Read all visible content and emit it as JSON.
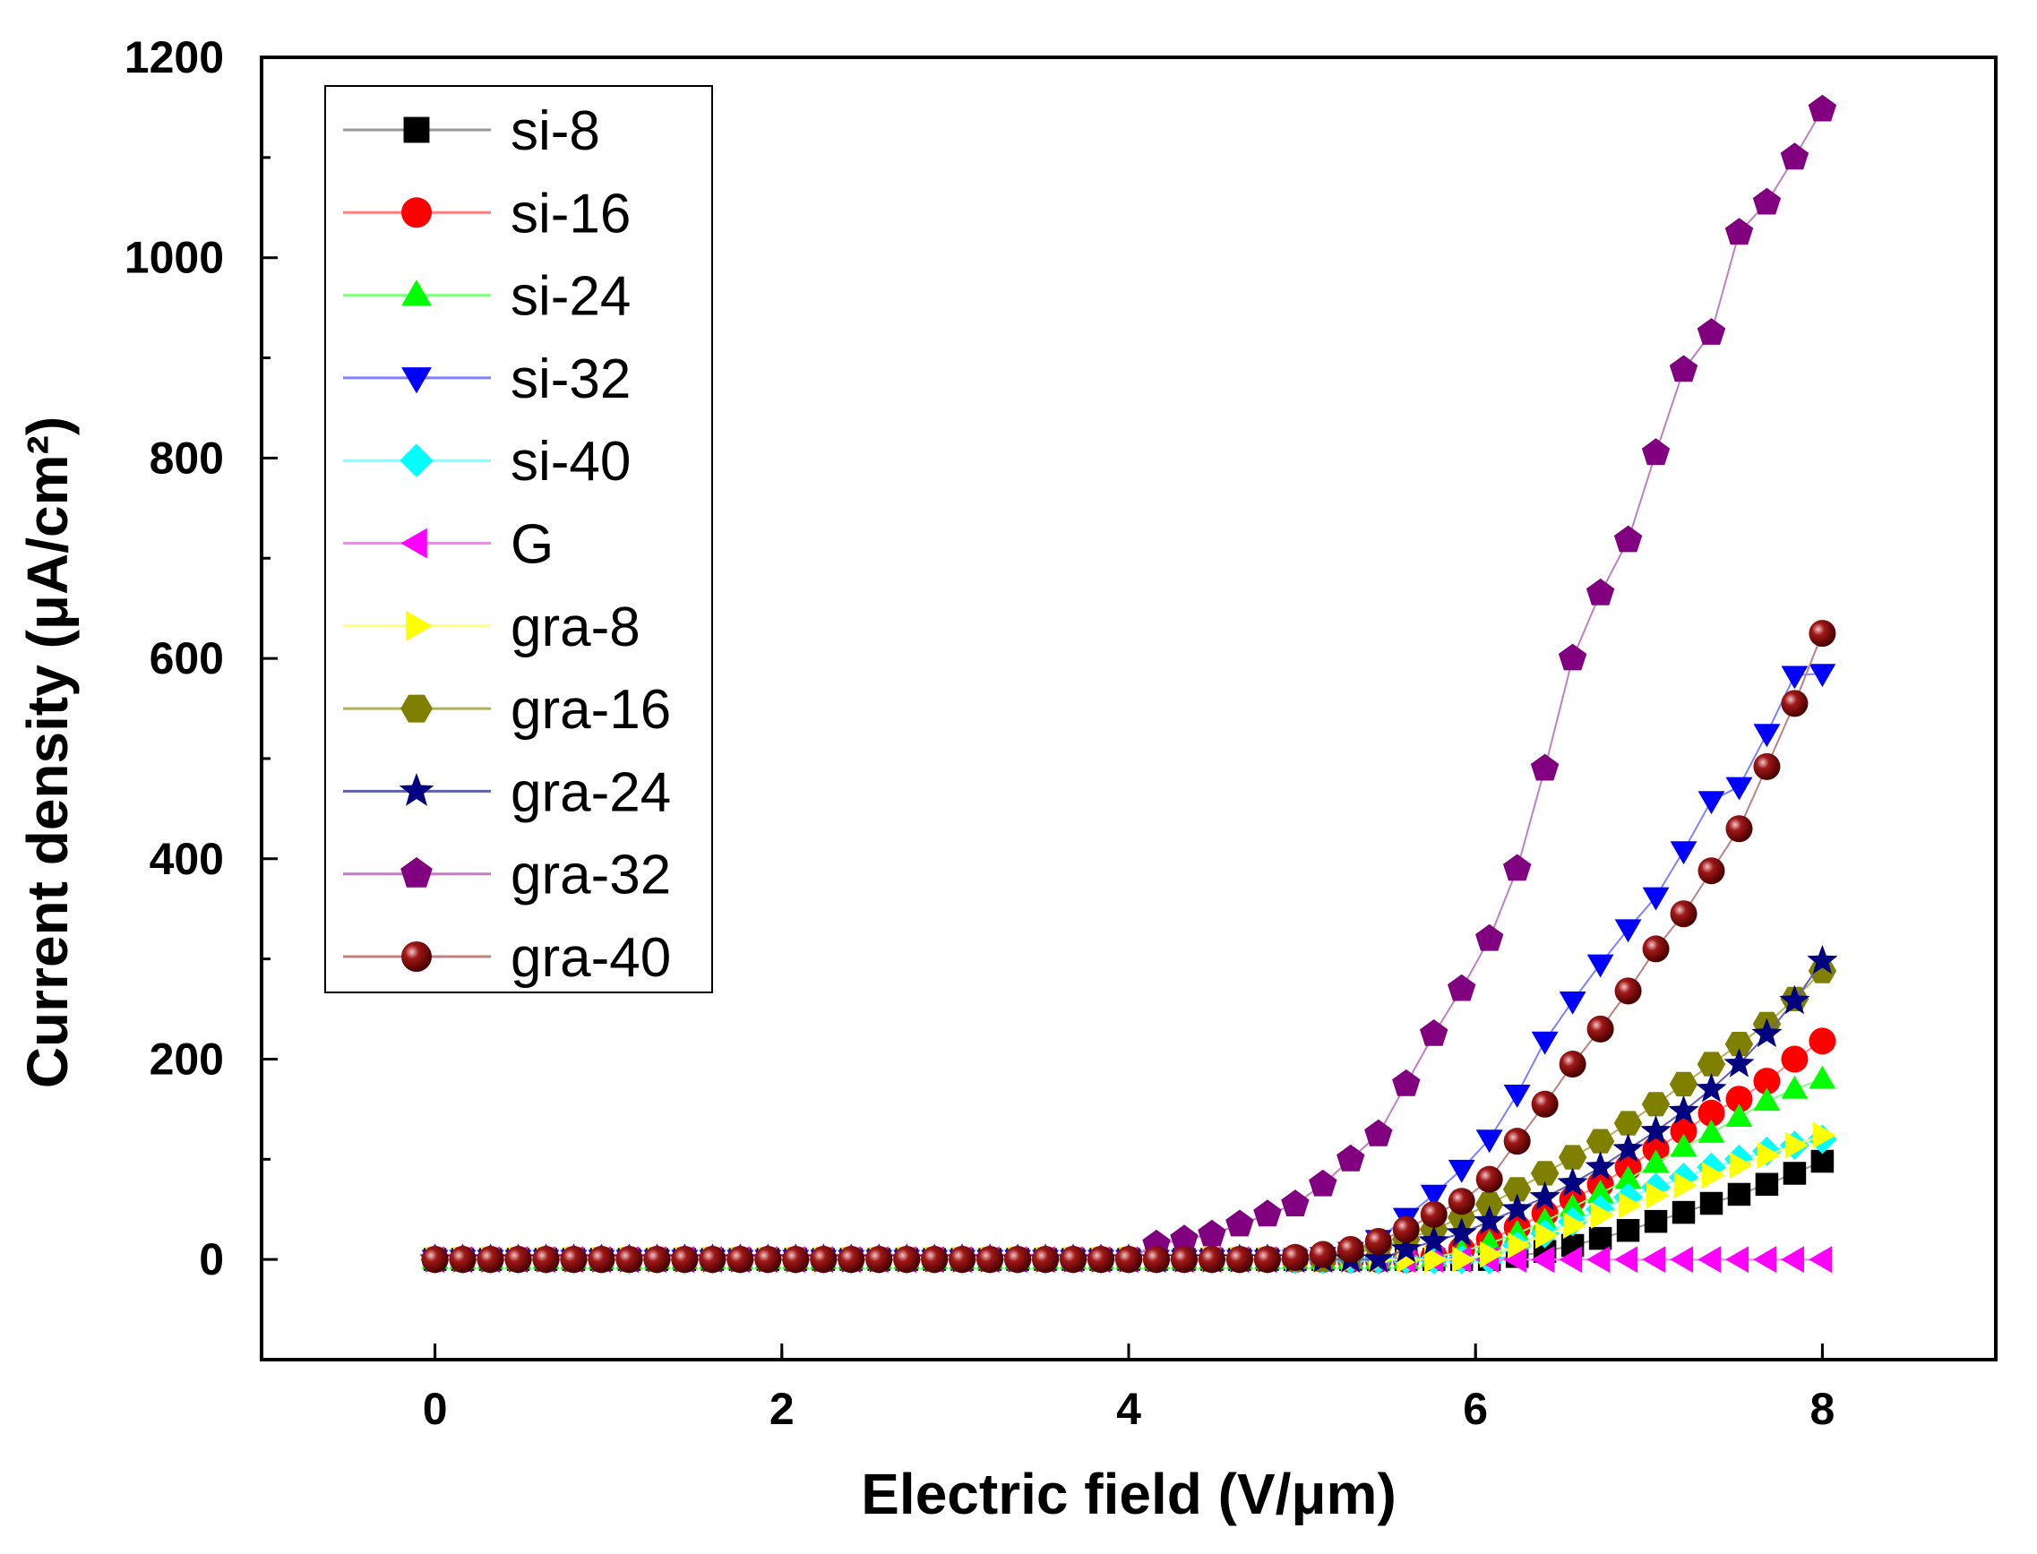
{
  "chart_data": {
    "type": "scatter",
    "xlabel": "Electric field (V/μm)",
    "ylabel": "Current density (μA/cm²)",
    "xlim": [
      -1,
      9
    ],
    "ylim": [
      -100,
      1200
    ],
    "xticks": [
      0,
      2,
      4,
      6,
      8
    ],
    "yticks": [
      0,
      200,
      400,
      600,
      800,
      1000,
      1200
    ],
    "legend_position": "top-left",
    "x": [
      0.0,
      0.16,
      0.32,
      0.48,
      0.64,
      0.8,
      0.96,
      1.12,
      1.28,
      1.44,
      1.6,
      1.76,
      1.92,
      2.08,
      2.24,
      2.4,
      2.56,
      2.72,
      2.88,
      3.04,
      3.2,
      3.36,
      3.52,
      3.68,
      3.84,
      4.0,
      4.16,
      4.32,
      4.48,
      4.64,
      4.8,
      4.96,
      5.12,
      5.28,
      5.44,
      5.6,
      5.76,
      5.92,
      6.08,
      6.24,
      6.4,
      6.56,
      6.72,
      6.88,
      7.04,
      7.2,
      7.36,
      7.52,
      7.68,
      7.84,
      8.0
    ],
    "series": [
      {
        "name": "si-8",
        "marker": "square",
        "color": "#000000",
        "line": "#999999",
        "values": [
          0,
          0,
          0,
          0,
          0,
          0,
          0,
          0,
          0,
          0,
          0,
          0,
          0,
          0,
          0,
          0,
          0,
          0,
          0,
          0,
          0,
          0,
          0,
          0,
          0,
          0,
          0,
          0,
          0,
          0,
          0,
          0,
          0,
          0,
          0,
          0,
          0,
          0,
          0,
          3,
          8,
          14,
          21,
          29,
          38,
          47,
          56,
          65,
          75,
          86,
          98
        ]
      },
      {
        "name": "si-16",
        "marker": "circle",
        "color": "#ff0000",
        "line": "#ff8080",
        "values": [
          0,
          0,
          0,
          0,
          0,
          0,
          0,
          0,
          0,
          0,
          0,
          0,
          0,
          0,
          0,
          0,
          0,
          0,
          0,
          0,
          0,
          0,
          0,
          0,
          0,
          0,
          0,
          0,
          0,
          0,
          0,
          0,
          0,
          0,
          0,
          0,
          3,
          10,
          20,
          32,
          46,
          60,
          75,
          92,
          110,
          128,
          146,
          160,
          178,
          200,
          218
        ]
      },
      {
        "name": "si-24",
        "marker": "triangle-up",
        "color": "#00ff00",
        "line": "#80ff80",
        "values": [
          0,
          0,
          0,
          0,
          0,
          0,
          0,
          0,
          0,
          0,
          0,
          0,
          0,
          0,
          0,
          0,
          0,
          0,
          0,
          0,
          0,
          0,
          0,
          0,
          0,
          0,
          0,
          0,
          0,
          0,
          0,
          0,
          0,
          0,
          0,
          0,
          2,
          8,
          16,
          26,
          38,
          52,
          66,
          80,
          96,
          112,
          126,
          142,
          158,
          170,
          180
        ]
      },
      {
        "name": "si-32",
        "marker": "triangle-down",
        "color": "#0000ff",
        "line": "#8080ff",
        "values": [
          0,
          0,
          0,
          0,
          0,
          0,
          0,
          0,
          0,
          0,
          0,
          0,
          0,
          0,
          0,
          0,
          0,
          0,
          0,
          0,
          0,
          0,
          0,
          0,
          0,
          0,
          0,
          0,
          0,
          0,
          0,
          0,
          3,
          8,
          20,
          42,
          65,
          90,
          120,
          165,
          218,
          258,
          295,
          330,
          362,
          408,
          458,
          472,
          525,
          583,
          585
        ]
      },
      {
        "name": "si-40",
        "marker": "diamond",
        "color": "#00ffff",
        "line": "#80ffff",
        "values": [
          0,
          0,
          0,
          0,
          0,
          0,
          0,
          0,
          0,
          0,
          0,
          0,
          0,
          0,
          0,
          0,
          0,
          0,
          0,
          0,
          0,
          0,
          0,
          0,
          0,
          0,
          0,
          0,
          0,
          0,
          0,
          0,
          0,
          0,
          0,
          0,
          0,
          0,
          0,
          14,
          26,
          38,
          50,
          62,
          72,
          82,
          92,
          100,
          108,
          114,
          120
        ]
      },
      {
        "name": "G",
        "marker": "triangle-left",
        "color": "#ff00ff",
        "line": "#ff80ff",
        "values": [
          0,
          0,
          0,
          0,
          0,
          0,
          0,
          0,
          0,
          0,
          0,
          0,
          0,
          0,
          0,
          0,
          0,
          0,
          0,
          0,
          0,
          0,
          0,
          0,
          0,
          0,
          0,
          0,
          0,
          0,
          0,
          0,
          0,
          0,
          0,
          0,
          0,
          0,
          0,
          0,
          0,
          0,
          0,
          0,
          0,
          0,
          0,
          0,
          0,
          0,
          0
        ]
      },
      {
        "name": "gra-8",
        "marker": "triangle-right",
        "color": "#ffff00",
        "line": "#ffff80",
        "values": [
          0,
          0,
          0,
          0,
          0,
          0,
          0,
          0,
          0,
          0,
          0,
          0,
          0,
          0,
          0,
          0,
          0,
          0,
          0,
          0,
          0,
          0,
          0,
          0,
          0,
          0,
          0,
          0,
          0,
          0,
          0,
          0,
          0,
          0,
          0,
          0,
          0,
          0,
          5,
          14,
          24,
          34,
          44,
          54,
          64,
          74,
          84,
          94,
          104,
          114,
          124
        ]
      },
      {
        "name": "gra-16",
        "marker": "hexagon",
        "color": "#808000",
        "line": "#b0b060",
        "values": [
          0,
          0,
          0,
          0,
          0,
          0,
          0,
          0,
          0,
          0,
          0,
          0,
          0,
          0,
          0,
          0,
          0,
          0,
          0,
          0,
          0,
          0,
          0,
          0,
          0,
          0,
          0,
          0,
          0,
          0,
          0,
          0,
          0,
          5,
          12,
          20,
          30,
          42,
          55,
          70,
          86,
          102,
          118,
          136,
          155,
          175,
          195,
          215,
          235,
          260,
          288
        ]
      },
      {
        "name": "gra-24",
        "marker": "star",
        "color": "#000080",
        "line": "#6060b0",
        "values": [
          0,
          0,
          0,
          0,
          0,
          0,
          0,
          0,
          0,
          0,
          0,
          0,
          0,
          0,
          0,
          0,
          0,
          0,
          0,
          0,
          0,
          0,
          0,
          0,
          0,
          0,
          0,
          0,
          0,
          0,
          0,
          0,
          0,
          0,
          0,
          10,
          18,
          26,
          38,
          50,
          62,
          76,
          92,
          110,
          128,
          148,
          170,
          195,
          225,
          258,
          298
        ]
      },
      {
        "name": "gra-32",
        "marker": "pentagon",
        "color": "#800080",
        "line": "#c080c0",
        "values": [
          0,
          0,
          0,
          0,
          0,
          0,
          0,
          0,
          0,
          0,
          0,
          0,
          0,
          0,
          0,
          0,
          0,
          0,
          0,
          0,
          0,
          0,
          0,
          0,
          0,
          0,
          15,
          20,
          25,
          35,
          45,
          55,
          75,
          100,
          125,
          175,
          225,
          270,
          320,
          390,
          490,
          600,
          665,
          718,
          805,
          888,
          925,
          1025,
          1055,
          1100,
          1148
        ]
      },
      {
        "name": "gra-40",
        "marker": "sphere",
        "color": "#800000",
        "line": "#c08080",
        "values": [
          0,
          0,
          0,
          0,
          0,
          0,
          0,
          0,
          0,
          0,
          0,
          0,
          0,
          0,
          0,
          0,
          0,
          0,
          0,
          0,
          0,
          0,
          0,
          0,
          0,
          0,
          0,
          0,
          0,
          0,
          0,
          2,
          5,
          10,
          18,
          30,
          45,
          58,
          80,
          118,
          155,
          195,
          230,
          268,
          310,
          345,
          388,
          430,
          492,
          555,
          625
        ]
      }
    ]
  }
}
